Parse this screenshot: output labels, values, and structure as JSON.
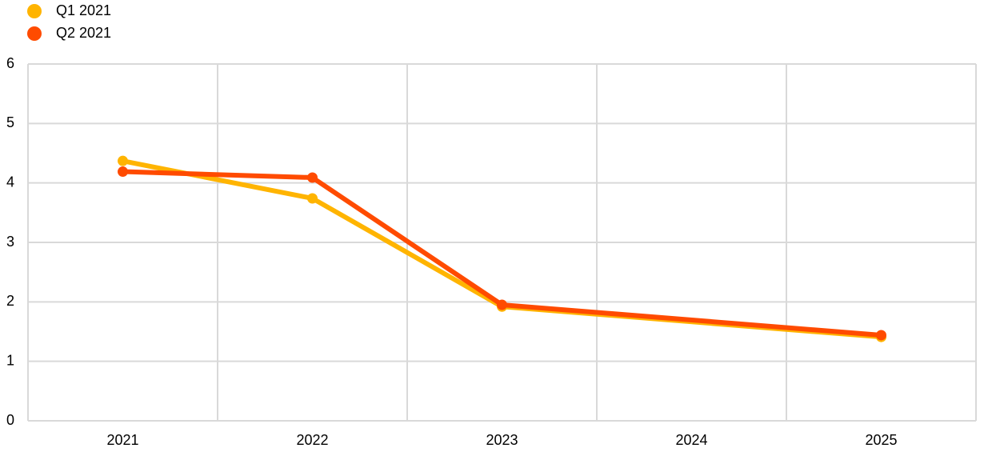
{
  "chart_data": {
    "type": "line",
    "x": [
      2021,
      2022,
      2023,
      2025
    ],
    "series": [
      {
        "name": "Q1 2021",
        "color": "#ffb400",
        "values": [
          4.37,
          3.74,
          1.92,
          1.41
        ]
      },
      {
        "name": "Q2 2021",
        "color": "#ff4b00",
        "values": [
          4.19,
          4.09,
          1.95,
          1.44
        ]
      }
    ],
    "xlim": [
      2020.5,
      2025.5
    ],
    "xticks": [
      2021,
      2022,
      2023,
      2024,
      2025
    ],
    "ylim": [
      0,
      6
    ],
    "yticks": [
      0,
      1,
      2,
      3,
      4,
      5,
      6
    ],
    "grid": true,
    "legend": "top-left"
  }
}
